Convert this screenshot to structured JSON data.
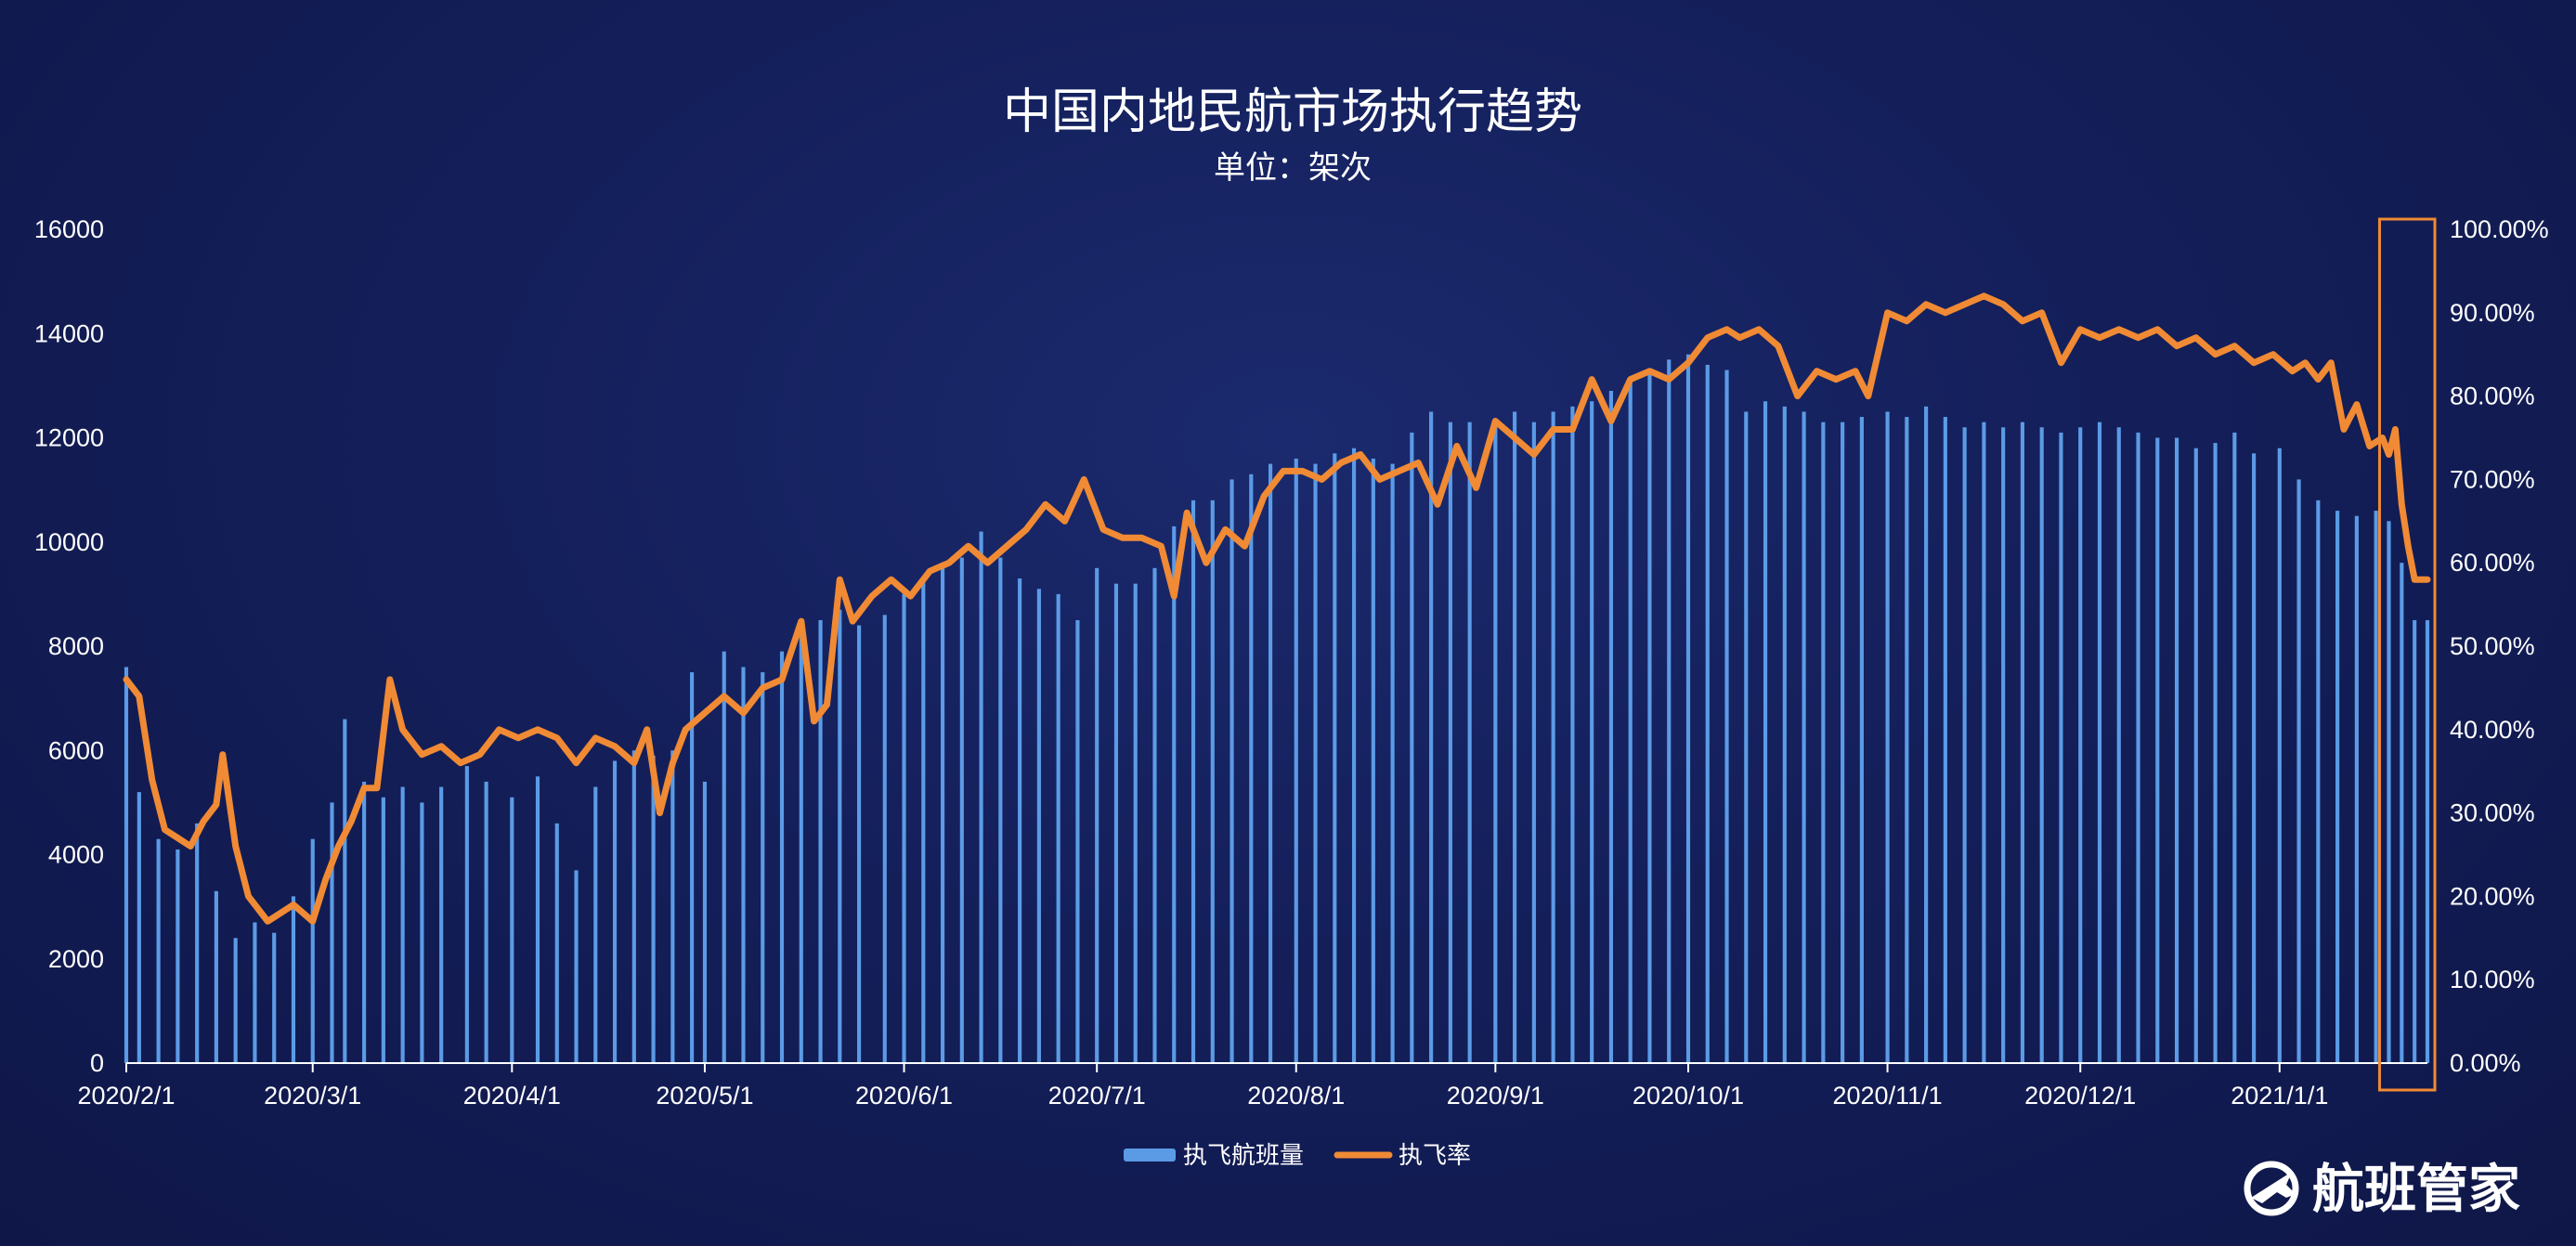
{
  "chart_data": {
    "type": "bar+line",
    "title": "中国内地民航市场执行趋势",
    "subtitle": "单位：架次",
    "x_tick_labels": [
      "2020/2/1",
      "2020/3/1",
      "2020/4/1",
      "2020/5/1",
      "2020/6/1",
      "2020/7/1",
      "2020/8/1",
      "2020/9/1",
      "2020/10/1",
      "2020/11/1",
      "2020/12/1",
      "2021/1/1"
    ],
    "x_range": [
      "2020-02-01",
      "2021-01-24"
    ],
    "y_left": {
      "range": [
        0,
        16000
      ],
      "ticks": [
        "0",
        "2000",
        "4000",
        "6000",
        "8000",
        "10000",
        "12000",
        "14000",
        "16000"
      ]
    },
    "y_right": {
      "range": [
        0,
        100
      ],
      "ticks": [
        "0.00%",
        "10.00%",
        "20.00%",
        "30.00%",
        "40.00%",
        "50.00%",
        "60.00%",
        "70.00%",
        "80.00%",
        "90.00%",
        "100.00%"
      ]
    },
    "series": [
      {
        "name": "执飞航班量",
        "type": "bar",
        "axis": "left",
        "color": "#5b9be6",
        "points": [
          [
            "2020-02-01",
            7600
          ],
          [
            "2020-02-03",
            5200
          ],
          [
            "2020-02-06",
            4300
          ],
          [
            "2020-02-09",
            4100
          ],
          [
            "2020-02-12",
            4600
          ],
          [
            "2020-02-15",
            3300
          ],
          [
            "2020-02-18",
            2400
          ],
          [
            "2020-02-21",
            2700
          ],
          [
            "2020-02-24",
            2500
          ],
          [
            "2020-02-27",
            3200
          ],
          [
            "2020-03-01",
            4300
          ],
          [
            "2020-03-04",
            5000
          ],
          [
            "2020-03-06",
            6600
          ],
          [
            "2020-03-09",
            5400
          ],
          [
            "2020-03-12",
            5100
          ],
          [
            "2020-03-15",
            5300
          ],
          [
            "2020-03-18",
            5000
          ],
          [
            "2020-03-21",
            5300
          ],
          [
            "2020-03-25",
            5700
          ],
          [
            "2020-03-28",
            5400
          ],
          [
            "2020-04-01",
            5100
          ],
          [
            "2020-04-05",
            5500
          ],
          [
            "2020-04-08",
            4600
          ],
          [
            "2020-04-11",
            3700
          ],
          [
            "2020-04-14",
            5300
          ],
          [
            "2020-04-17",
            5800
          ],
          [
            "2020-04-20",
            6000
          ],
          [
            "2020-04-23",
            5900
          ],
          [
            "2020-04-26",
            6000
          ],
          [
            "2020-04-29",
            7500
          ],
          [
            "2020-05-01",
            5400
          ],
          [
            "2020-05-04",
            7900
          ],
          [
            "2020-05-07",
            7600
          ],
          [
            "2020-05-10",
            7500
          ],
          [
            "2020-05-13",
            7900
          ],
          [
            "2020-05-16",
            8400
          ],
          [
            "2020-05-19",
            8500
          ],
          [
            "2020-05-22",
            8700
          ],
          [
            "2020-05-25",
            8400
          ],
          [
            "2020-05-29",
            8600
          ],
          [
            "2020-06-01",
            9000
          ],
          [
            "2020-06-04",
            9300
          ],
          [
            "2020-06-07",
            9600
          ],
          [
            "2020-06-10",
            9700
          ],
          [
            "2020-06-13",
            10200
          ],
          [
            "2020-06-16",
            9700
          ],
          [
            "2020-06-19",
            9300
          ],
          [
            "2020-06-22",
            9100
          ],
          [
            "2020-06-25",
            9000
          ],
          [
            "2020-06-28",
            8500
          ],
          [
            "2020-07-01",
            9500
          ],
          [
            "2020-07-04",
            9200
          ],
          [
            "2020-07-07",
            9200
          ],
          [
            "2020-07-10",
            9500
          ],
          [
            "2020-07-13",
            10300
          ],
          [
            "2020-07-16",
            10800
          ],
          [
            "2020-07-19",
            10800
          ],
          [
            "2020-07-22",
            11200
          ],
          [
            "2020-07-25",
            11300
          ],
          [
            "2020-07-28",
            11500
          ],
          [
            "2020-08-01",
            11600
          ],
          [
            "2020-08-04",
            11500
          ],
          [
            "2020-08-07",
            11700
          ],
          [
            "2020-08-10",
            11800
          ],
          [
            "2020-08-13",
            11600
          ],
          [
            "2020-08-16",
            11500
          ],
          [
            "2020-08-19",
            12100
          ],
          [
            "2020-08-22",
            12500
          ],
          [
            "2020-08-25",
            12300
          ],
          [
            "2020-08-28",
            12300
          ],
          [
            "2020-09-01",
            12200
          ],
          [
            "2020-09-04",
            12500
          ],
          [
            "2020-09-07",
            12300
          ],
          [
            "2020-09-10",
            12500
          ],
          [
            "2020-09-13",
            12600
          ],
          [
            "2020-09-16",
            12700
          ],
          [
            "2020-09-19",
            12900
          ],
          [
            "2020-09-22",
            13100
          ],
          [
            "2020-09-25",
            13300
          ],
          [
            "2020-09-28",
            13500
          ],
          [
            "2020-10-01",
            13600
          ],
          [
            "2020-10-04",
            13400
          ],
          [
            "2020-10-07",
            13300
          ],
          [
            "2020-10-10",
            12500
          ],
          [
            "2020-10-13",
            12700
          ],
          [
            "2020-10-16",
            12600
          ],
          [
            "2020-10-19",
            12500
          ],
          [
            "2020-10-22",
            12300
          ],
          [
            "2020-10-25",
            12300
          ],
          [
            "2020-10-28",
            12400
          ],
          [
            "2020-11-01",
            12500
          ],
          [
            "2020-11-04",
            12400
          ],
          [
            "2020-11-07",
            12600
          ],
          [
            "2020-11-10",
            12400
          ],
          [
            "2020-11-13",
            12200
          ],
          [
            "2020-11-16",
            12300
          ],
          [
            "2020-11-19",
            12200
          ],
          [
            "2020-11-22",
            12300
          ],
          [
            "2020-11-25",
            12200
          ],
          [
            "2020-11-28",
            12100
          ],
          [
            "2020-12-01",
            12200
          ],
          [
            "2020-12-04",
            12300
          ],
          [
            "2020-12-07",
            12200
          ],
          [
            "2020-12-10",
            12100
          ],
          [
            "2020-12-13",
            12000
          ],
          [
            "2020-12-16",
            12000
          ],
          [
            "2020-12-19",
            11800
          ],
          [
            "2020-12-22",
            11900
          ],
          [
            "2020-12-25",
            12100
          ],
          [
            "2020-12-28",
            11700
          ],
          [
            "2021-01-01",
            11800
          ],
          [
            "2021-01-04",
            11200
          ],
          [
            "2021-01-07",
            10800
          ],
          [
            "2021-01-10",
            10600
          ],
          [
            "2021-01-13",
            10500
          ],
          [
            "2021-01-16",
            10600
          ],
          [
            "2021-01-18",
            10400
          ],
          [
            "2021-01-20",
            9600
          ],
          [
            "2021-01-22",
            8500
          ],
          [
            "2021-01-24",
            8500
          ]
        ]
      },
      {
        "name": "执飞率",
        "type": "line",
        "axis": "right",
        "color": "#f08a34",
        "points": [
          [
            "2020-02-01",
            46
          ],
          [
            "2020-02-03",
            44
          ],
          [
            "2020-02-05",
            34
          ],
          [
            "2020-02-07",
            28
          ],
          [
            "2020-02-09",
            27
          ],
          [
            "2020-02-11",
            26
          ],
          [
            "2020-02-13",
            29
          ],
          [
            "2020-02-15",
            31
          ],
          [
            "2020-02-16",
            37
          ],
          [
            "2020-02-18",
            26
          ],
          [
            "2020-02-20",
            20
          ],
          [
            "2020-02-23",
            17
          ],
          [
            "2020-02-25",
            18
          ],
          [
            "2020-02-27",
            19
          ],
          [
            "2020-03-01",
            17
          ],
          [
            "2020-03-03",
            22
          ],
          [
            "2020-03-05",
            26
          ],
          [
            "2020-03-07",
            29
          ],
          [
            "2020-03-09",
            33
          ],
          [
            "2020-03-11",
            33
          ],
          [
            "2020-03-13",
            46
          ],
          [
            "2020-03-15",
            40
          ],
          [
            "2020-03-18",
            37
          ],
          [
            "2020-03-21",
            38
          ],
          [
            "2020-03-24",
            36
          ],
          [
            "2020-03-27",
            37
          ],
          [
            "2020-03-30",
            40
          ],
          [
            "2020-04-02",
            39
          ],
          [
            "2020-04-05",
            40
          ],
          [
            "2020-04-08",
            39
          ],
          [
            "2020-04-11",
            36
          ],
          [
            "2020-04-14",
            39
          ],
          [
            "2020-04-17",
            38
          ],
          [
            "2020-04-20",
            36
          ],
          [
            "2020-04-22",
            40
          ],
          [
            "2020-04-24",
            30
          ],
          [
            "2020-04-26",
            36
          ],
          [
            "2020-04-28",
            40
          ],
          [
            "2020-05-01",
            42
          ],
          [
            "2020-05-04",
            44
          ],
          [
            "2020-05-07",
            42
          ],
          [
            "2020-05-10",
            45
          ],
          [
            "2020-05-13",
            46
          ],
          [
            "2020-05-16",
            53
          ],
          [
            "2020-05-18",
            41
          ],
          [
            "2020-05-20",
            43
          ],
          [
            "2020-05-22",
            58
          ],
          [
            "2020-05-24",
            53
          ],
          [
            "2020-05-27",
            56
          ],
          [
            "2020-05-30",
            58
          ],
          [
            "2020-06-02",
            56
          ],
          [
            "2020-06-05",
            59
          ],
          [
            "2020-06-08",
            60
          ],
          [
            "2020-06-11",
            62
          ],
          [
            "2020-06-14",
            60
          ],
          [
            "2020-06-17",
            62
          ],
          [
            "2020-06-20",
            64
          ],
          [
            "2020-06-23",
            67
          ],
          [
            "2020-06-26",
            65
          ],
          [
            "2020-06-29",
            70
          ],
          [
            "2020-07-02",
            64
          ],
          [
            "2020-07-05",
            63
          ],
          [
            "2020-07-08",
            63
          ],
          [
            "2020-07-11",
            62
          ],
          [
            "2020-07-13",
            56
          ],
          [
            "2020-07-15",
            66
          ],
          [
            "2020-07-18",
            60
          ],
          [
            "2020-07-21",
            64
          ],
          [
            "2020-07-24",
            62
          ],
          [
            "2020-07-27",
            68
          ],
          [
            "2020-07-30",
            71
          ],
          [
            "2020-08-02",
            71
          ],
          [
            "2020-08-05",
            70
          ],
          [
            "2020-08-08",
            72
          ],
          [
            "2020-08-11",
            73
          ],
          [
            "2020-08-14",
            70
          ],
          [
            "2020-08-17",
            71
          ],
          [
            "2020-08-20",
            72
          ],
          [
            "2020-08-23",
            67
          ],
          [
            "2020-08-26",
            74
          ],
          [
            "2020-08-29",
            69
          ],
          [
            "2020-09-01",
            77
          ],
          [
            "2020-09-04",
            75
          ],
          [
            "2020-09-07",
            73
          ],
          [
            "2020-09-10",
            76
          ],
          [
            "2020-09-13",
            76
          ],
          [
            "2020-09-16",
            82
          ],
          [
            "2020-09-19",
            77
          ],
          [
            "2020-09-22",
            82
          ],
          [
            "2020-09-25",
            83
          ],
          [
            "2020-09-28",
            82
          ],
          [
            "2020-10-01",
            84
          ],
          [
            "2020-10-04",
            87
          ],
          [
            "2020-10-07",
            88
          ],
          [
            "2020-10-09",
            87
          ],
          [
            "2020-10-12",
            88
          ],
          [
            "2020-10-15",
            86
          ],
          [
            "2020-10-18",
            80
          ],
          [
            "2020-10-21",
            83
          ],
          [
            "2020-10-24",
            82
          ],
          [
            "2020-10-27",
            83
          ],
          [
            "2020-10-29",
            80
          ],
          [
            "2020-11-01",
            90
          ],
          [
            "2020-11-04",
            89
          ],
          [
            "2020-11-07",
            91
          ],
          [
            "2020-11-10",
            90
          ],
          [
            "2020-11-13",
            91
          ],
          [
            "2020-11-16",
            92
          ],
          [
            "2020-11-19",
            91
          ],
          [
            "2020-11-22",
            89
          ],
          [
            "2020-11-25",
            90
          ],
          [
            "2020-11-28",
            84
          ],
          [
            "2020-12-01",
            88
          ],
          [
            "2020-12-04",
            87
          ],
          [
            "2020-12-07",
            88
          ],
          [
            "2020-12-10",
            87
          ],
          [
            "2020-12-13",
            88
          ],
          [
            "2020-12-16",
            86
          ],
          [
            "2020-12-19",
            87
          ],
          [
            "2020-12-22",
            85
          ],
          [
            "2020-12-25",
            86
          ],
          [
            "2020-12-28",
            84
          ],
          [
            "2020-12-31",
            85
          ],
          [
            "2021-01-03",
            83
          ],
          [
            "2021-01-05",
            84
          ],
          [
            "2021-01-07",
            82
          ],
          [
            "2021-01-09",
            84
          ],
          [
            "2021-01-11",
            76
          ],
          [
            "2021-01-13",
            79
          ],
          [
            "2021-01-15",
            74
          ],
          [
            "2021-01-17",
            75
          ],
          [
            "2021-01-18",
            73
          ],
          [
            "2021-01-19",
            76
          ],
          [
            "2021-01-20",
            67
          ],
          [
            "2021-01-21",
            62
          ],
          [
            "2021-01-22",
            58
          ],
          [
            "2021-01-24",
            58
          ]
        ]
      }
    ],
    "highlight_range": [
      "2021-01-18",
      "2021-01-24"
    ],
    "highlight_color": "#f08a34",
    "legend": {
      "placement": "bottom-center"
    },
    "grid": false
  },
  "branding": {
    "logo_text": "航班管家",
    "logo_icon": "plane-globe-icon"
  }
}
